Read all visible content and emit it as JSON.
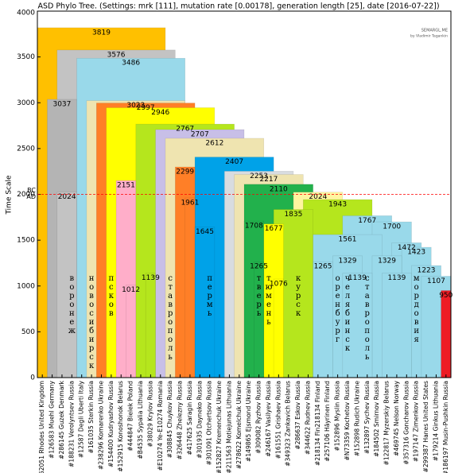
{
  "chart_data": {
    "type": "tree",
    "title": "ASD Phylo Tree. (Settings: mrk [111], mutation rate [0.00178], generation length [25], date [2016-07-22])",
    "ylabel": "Time Scale",
    "watermark": {
      "title": "SEMARGL.ME",
      "subtitle": "by Vladimir Tagankin"
    },
    "reference": {
      "value": 2000,
      "above": "BC",
      "below": "AD",
      "color": "#ff0000"
    },
    "ylim": [
      0,
      4000
    ],
    "yticks": [
      0,
      500,
      1000,
      1500,
      2000,
      2500,
      3000,
      3500,
      4000
    ],
    "categories": [
      "#62051 Rhodes United Kingdom",
      "#126583 Muehl Germany",
      "#286145 Guzek Denmark",
      "#188231 Verolyntsev Russia",
      "#12587 Degli Uberti Italy",
      "#161035 Sterkin Russia",
      "#238296 Komarenko Ukraine",
      "#154400 Kudryashov Russia",
      "#152915 Konoshonok Belarus",
      "#444847 Bielek Poland",
      "#B4535 Sypalia Lithuania",
      "#38029 Krylov Russia",
      "#E10274 Ye-E10274 Romania",
      "#308845 Chuykov Russia",
      "#326448 Zhelezny Russia",
      "#417625 Saragin Russia",
      "#301935 Dayneko Russia",
      "#301091 Otchertsov Russia",
      "#152827 Kremenchuk Ukraine",
      "#211563 Motiejunas Lithuania",
      "#278622 Komelchuk Ukraine",
      "#149865 Ejsmond Ukraine",
      "#309082 Ryzhov Russia",
      "#246167 Vasilyev Russia",
      "#161551 Grishaev Russia",
      "#349323 Zankavich Belarus",
      "#286637 Eskov Russia",
      "#344622 Rudnev Russia",
      "#218134 Fin218134 Finland",
      "#257106 Häyrinen Finland",
      "#152896 Myslin Russia",
      "#N73359 Kochetov Russia",
      "#152898 Rudich Ukraine",
      "#132897 Sychev Russia",
      "#184502 Smirnov Russia",
      "#122817 Myzerskiy Belarus",
      "#469745 Nelson Norway",
      "#357316 Goncharov Russia",
      "#197147 Zimenkov Russia",
      "#299387 Hanes United States",
      "#179214 Ginkus Lithuania",
      "#186197 Musin-Pushkin Russia"
    ],
    "nodes": [
      {
        "value": 3819,
        "span": [
          0,
          13
        ],
        "color": "#ffc000"
      },
      {
        "value": 3576,
        "span": [
          2,
          14
        ],
        "color": "#c3c3c3"
      },
      {
        "value": 3486,
        "span": [
          4,
          15
        ],
        "color": "#99d9ea"
      },
      {
        "value": 3037,
        "span": [
          1,
          4
        ],
        "color": "#b4b4b4"
      },
      {
        "value": 3023,
        "span": [
          5,
          15
        ],
        "color": "#efe4b0"
      },
      {
        "value": 2997,
        "span": [
          6,
          16
        ],
        "color": "#ff7f27"
      },
      {
        "value": 2946,
        "span": [
          7,
          18
        ],
        "color": "#ffff00"
      },
      {
        "value": 2767,
        "span": [
          10,
          20
        ],
        "color": "#b5e61d"
      },
      {
        "value": 2707,
        "span": [
          12,
          21
        ],
        "color": "#c8bfe7"
      },
      {
        "value": 2612,
        "span": [
          13,
          23
        ],
        "color": "#efe4b0"
      },
      {
        "value": 2407,
        "span": [
          16,
          24
        ],
        "color": "#00a2e8"
      },
      {
        "value": 2299,
        "span": [
          14,
          16
        ],
        "color": "#ff7f27"
      },
      {
        "value": 2253,
        "span": [
          19,
          26
        ],
        "color": "#d8dce0"
      },
      {
        "value": 2217,
        "span": [
          20,
          27
        ],
        "color": "#efe4b0"
      },
      {
        "value": 2151,
        "span": [
          8,
          10
        ],
        "color": "#ffaec9"
      },
      {
        "value": 2110,
        "span": [
          21,
          28
        ],
        "color": "#22b14c"
      },
      {
        "value": 2024,
        "span": [
          2,
          4
        ],
        "color": "#c3c3c3"
      },
      {
        "value": 2024,
        "span": [
          26,
          31
        ],
        "color": "#fff5a0"
      },
      {
        "value": 1961,
        "span": [
          15,
          16
        ],
        "color": "#ff7f27"
      },
      {
        "value": 1943,
        "span": [
          27,
          34
        ],
        "color": "#b5e61d"
      },
      {
        "value": 1835,
        "span": [
          24,
          28
        ],
        "color": "#b5e61d"
      },
      {
        "value": 1767,
        "span": [
          31,
          36
        ],
        "color": "#99d9ea"
      },
      {
        "value": 1708,
        "span": [
          21,
          23
        ],
        "color": "#22b14c"
      },
      {
        "value": 1700,
        "span": [
          34,
          38
        ],
        "color": "#99d9ea"
      },
      {
        "value": 1677,
        "span": [
          23,
          25
        ],
        "color": "#ffff00"
      },
      {
        "value": 1645,
        "span": [
          16,
          18
        ],
        "color": "#00a2e8"
      },
      {
        "value": 1561,
        "span": [
          28,
          35
        ],
        "color": "#99d9ea"
      },
      {
        "value": 1472,
        "span": [
          36,
          39
        ],
        "color": "#99d9ea"
      },
      {
        "value": 1423,
        "span": [
          37,
          40
        ],
        "color": "#99d9ea"
      },
      {
        "value": 1329,
        "span": [
          30,
          33
        ],
        "color": "#99d9ea"
      },
      {
        "value": 1329,
        "span": [
          34,
          37
        ],
        "color": "#99d9ea"
      },
      {
        "value": 1265,
        "span": [
          22,
          23
        ],
        "color": "#22b14c"
      },
      {
        "value": 1265,
        "span": [
          28,
          30
        ],
        "color": "#99d9ea"
      },
      {
        "value": 1223,
        "span": [
          38,
          41
        ],
        "color": "#99d9ea"
      },
      {
        "value": 1139,
        "span": [
          11,
          12
        ],
        "color": "#b5e61d"
      },
      {
        "value": 1139,
        "span": [
          31,
          34
        ],
        "color": "#99d9ea"
      },
      {
        "value": 1139,
        "span": [
          35,
          38
        ],
        "color": "#99d9ea"
      },
      {
        "value": 1107,
        "span": [
          39,
          42
        ],
        "color": "#99d9ea"
      },
      {
        "value": 1076,
        "span": [
          24,
          25
        ],
        "color": "#ffff00"
      },
      {
        "value": 1012,
        "span": [
          9,
          10
        ],
        "color": "#ffaec9"
      },
      {
        "value": 950,
        "span": [
          41,
          42
        ],
        "color": "#ed1c24"
      }
    ],
    "places": [
      {
        "text": "воронеж",
        "category": 3
      },
      {
        "text": "новосибирск",
        "category": 5
      },
      {
        "text": "псков",
        "category": 7
      },
      {
        "text": "ставрополь",
        "category": 13
      },
      {
        "text": "пермь",
        "category": 17
      },
      {
        "text": "тверь",
        "category": 22
      },
      {
        "text": "тюмень",
        "category": 23
      },
      {
        "text": "курск",
        "category": 26
      },
      {
        "text": "оренбург",
        "category": 30
      },
      {
        "text": "челябинск",
        "category": 31
      },
      {
        "text": "ставрополь",
        "category": 33
      },
      {
        "text": "мордовия",
        "category": 38
      }
    ]
  }
}
